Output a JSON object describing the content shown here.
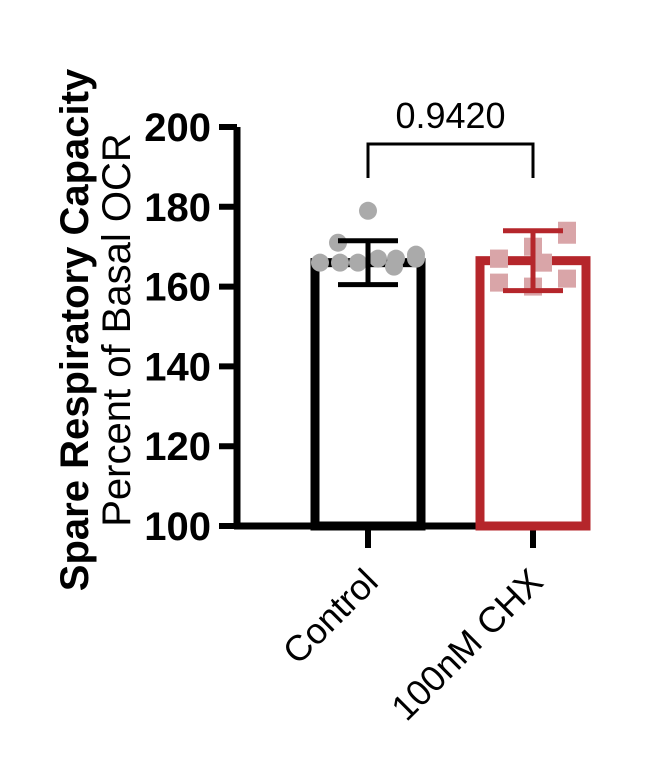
{
  "chart_data": {
    "type": "bar",
    "ylabel_line1": "Spare Respiratory  Capacity",
    "ylabel_line2": "Percent of Basal  OCR",
    "xlabel": "",
    "ylim": [
      100,
      200
    ],
    "yticks": [
      100,
      120,
      140,
      160,
      180,
      200
    ],
    "categories": [
      "Control",
      "100nM CHX"
    ],
    "values": [
      166,
      166.5
    ],
    "errors": [
      5.5,
      7.5
    ],
    "points": [
      [
        166,
        166,
        166,
        167,
        167,
        167,
        168,
        171,
        165,
        179
      ],
      [
        167,
        170,
        174,
        173,
        167,
        162,
        161,
        160,
        166
      ]
    ],
    "significance": {
      "label": "0.9420",
      "between": [
        0,
        1
      ]
    },
    "colors": {
      "bar_edges": [
        "#000000",
        "#b5262b"
      ],
      "points": [
        "#aaaaaa",
        "#d9a5a8"
      ],
      "errorbars": [
        "#000000",
        "#b5262b"
      ]
    }
  }
}
